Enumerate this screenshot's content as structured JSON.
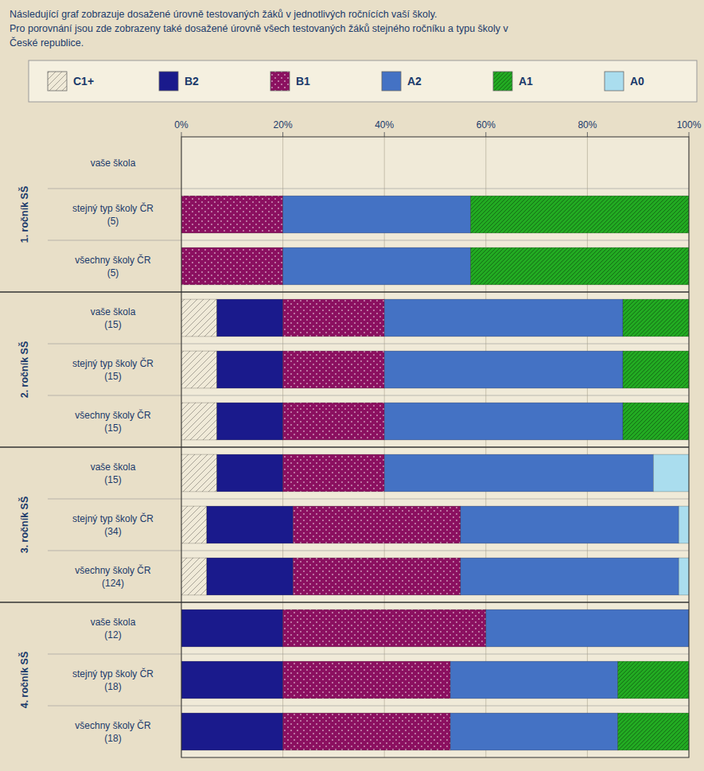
{
  "chart_data": {
    "type": "bar",
    "orientation": "horizontal",
    "stacked": true,
    "grid": true,
    "legend": "top",
    "title": "Následující graf zobrazuje dosažené úrovně testovaných žáků v jednotlivých ročnících vaší školy.\nPro porovnání jsou zde zobrazeny také dosažené úrovně všech testovaných žáků stejného ročníku a typu školy v\nČeské republice.",
    "categories": [
      "vaše škola",
      "stejný typ školy ČR\n(5)",
      "všechny školy ČR\n(5)",
      "vaše škola\n(15)",
      "stejný typ školy ČR\n(15)",
      "všechny školy ČR\n(15)",
      "vaše škola\n(15)",
      "stejný typ školy ČR\n(34)",
      "všechny školy ČR\n(124)",
      "vaše škola\n(12)",
      "stejný typ školy ČR\n(18)",
      "všechny školy ČR\n(18)"
    ],
    "group_labels": [
      "1. ročník SŠ",
      "2. ročník SŠ",
      "3. ročník SŠ",
      "4. ročník SŠ"
    ],
    "series": [
      {
        "name": "C1+",
        "color": "#f0ead8",
        "values": [
          0,
          0,
          0,
          7,
          7,
          7,
          7,
          5,
          5,
          0,
          0,
          0
        ]
      },
      {
        "name": "B2",
        "color": "#1a1a8c",
        "values": [
          0,
          0,
          0,
          13,
          13,
          13,
          13,
          17,
          17,
          20,
          20,
          20
        ]
      },
      {
        "name": "B1",
        "color": "#8b1060",
        "values": [
          0,
          20,
          20,
          20,
          20,
          20,
          20,
          33,
          33,
          40,
          33,
          33
        ]
      },
      {
        "name": "A2",
        "color": "#4472c4",
        "values": [
          0,
          37,
          37,
          47,
          47,
          47,
          53,
          43,
          43,
          40,
          33,
          33
        ]
      },
      {
        "name": "A1",
        "color": "#22aa22",
        "values": [
          0,
          43,
          43,
          13,
          13,
          13,
          0,
          0,
          0,
          0,
          14,
          14
        ]
      },
      {
        "name": "A0",
        "color": "#aaddee",
        "values": [
          0,
          0,
          0,
          0,
          0,
          0,
          7,
          2,
          2,
          0,
          0,
          0
        ]
      }
    ],
    "xlim": [
      0,
      100
    ],
    "xticks": [
      {
        "value": 0,
        "label": "0%"
      },
      {
        "value": 20,
        "label": "20%"
      },
      {
        "value": 40,
        "label": "40%"
      },
      {
        "value": 60,
        "label": "60%"
      },
      {
        "value": 80,
        "label": "80%"
      },
      {
        "value": 100,
        "label": "100%"
      }
    ]
  }
}
